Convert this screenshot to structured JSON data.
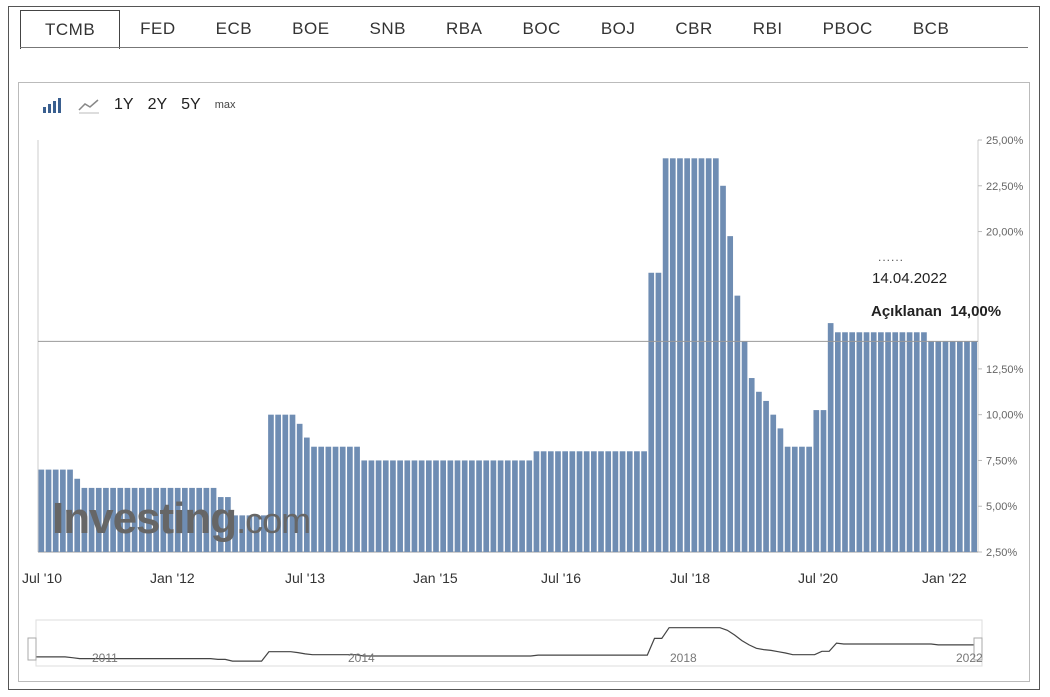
{
  "tabs": [
    "TCMB",
    "FED",
    "ECB",
    "BOE",
    "SNB",
    "RBA",
    "BOC",
    "BOJ",
    "CBR",
    "RBI",
    "PBOC",
    "BCB"
  ],
  "active_tab": "TCMB",
  "toolbar": {
    "bar_icon": "bar-chart-icon",
    "line_icon": "line-chart-icon",
    "ranges": [
      "1Y",
      "2Y",
      "5Y",
      "max"
    ]
  },
  "watermark": {
    "brand": "Investing",
    "suffix": ".com"
  },
  "tooltip": {
    "dots": "......",
    "date": "14.04.2022",
    "label": "Açıklanan",
    "value": "14,00%"
  },
  "colors": {
    "bar": "#6f8db3",
    "bar_edge": "#4a6a93",
    "grid": "#dddddd",
    "line": "#999999"
  },
  "chart_data": {
    "type": "bar",
    "x_ticks": [
      "Jul '10",
      "Jan '12",
      "Jul '13",
      "Jan '15",
      "Jul '16",
      "Jul '18",
      "Jul '20",
      "Jan '22"
    ],
    "y_ticks": [
      "2,50%",
      "5,00%",
      "7,50%",
      "10,00%",
      "12,50%",
      "20,00%",
      "22,50%",
      "25,00%"
    ],
    "ylim": [
      2.5,
      25
    ],
    "current_line": 14.0,
    "series": [
      {
        "values": [
          7,
          7,
          7,
          7,
          7,
          6.5,
          6,
          6,
          6,
          6,
          6,
          6,
          6,
          6,
          6,
          6,
          6,
          6,
          6,
          6,
          6,
          6,
          6,
          6,
          6,
          5.5,
          5.5,
          4.5,
          4.5,
          4.5,
          4.5,
          4.5,
          10,
          10,
          10,
          10,
          9.5,
          8.75,
          8.25,
          8.25,
          8.25,
          8.25,
          8.25,
          8.25,
          8.25,
          7.5,
          7.5,
          7.5,
          7.5,
          7.5,
          7.5,
          7.5,
          7.5,
          7.5,
          7.5,
          7.5,
          7.5,
          7.5,
          7.5,
          7.5,
          7.5,
          7.5,
          7.5,
          7.5,
          7.5,
          7.5,
          7.5,
          7.5,
          7.5,
          8,
          8,
          8,
          8,
          8,
          8,
          8,
          8,
          8,
          8,
          8,
          8,
          8,
          8,
          8,
          8,
          17.75,
          17.75,
          24,
          24,
          24,
          24,
          24,
          24,
          24,
          24,
          22.5,
          19.75,
          16.5,
          14,
          12,
          11.25,
          10.75,
          10,
          9.25,
          8.25,
          8.25,
          8.25,
          8.25,
          10.25,
          10.25,
          15,
          14.5,
          14.5,
          14.5,
          14.5,
          14.5,
          14.5,
          14.5,
          14.5,
          14.5,
          14.5,
          14.5,
          14.5,
          14.5,
          14,
          14,
          14,
          14,
          14,
          14,
          14
        ]
      }
    ],
    "navigator_ticks": [
      "2011",
      "2014",
      "2018",
      "2022"
    ]
  }
}
